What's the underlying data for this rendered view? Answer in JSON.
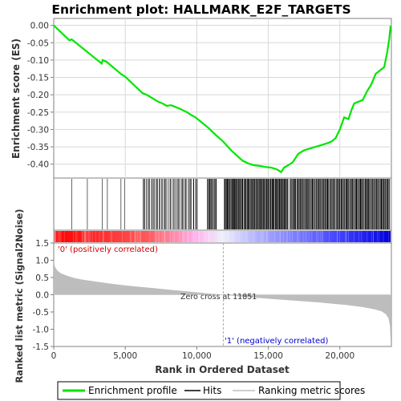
{
  "title": "Enrichment plot: HALLMARK_E2F_TARGETS",
  "colors": {
    "es_line": "#00e600",
    "hits": "#000000",
    "metric_fill": "#bdbdbd",
    "positive_label": "#cc0000",
    "negative_label": "#0000cc",
    "zero_line": "#d0d0d0",
    "grid": "#d8d8d8"
  },
  "chart_data": [
    {
      "type": "line",
      "panel": "enrichment-score",
      "ylabel": "Enrichment score (ES)",
      "ylim": [
        -0.44,
        0.02
      ],
      "xlim": [
        0,
        23600
      ],
      "yticks": [
        "0.00",
        "-0.05",
        "-0.10",
        "-0.15",
        "-0.20",
        "-0.25",
        "-0.30",
        "-0.35",
        "-0.40"
      ],
      "ytick_values": [
        0,
        -0.05,
        -0.1,
        -0.15,
        -0.2,
        -0.25,
        -0.3,
        -0.35,
        -0.4
      ],
      "grid": true,
      "series": [
        {
          "name": "Enrichment profile",
          "x": [
            0,
            1100,
            1250,
            2300,
            2450,
            3350,
            3420,
            3700,
            4700,
            5000,
            6200,
            6500,
            6900,
            7300,
            7600,
            7900,
            8200,
            8500,
            8800,
            9300,
            9600,
            9900,
            10200,
            10800,
            11300,
            11850,
            12400,
            12800,
            13200,
            13600,
            14000,
            14400,
            14800,
            15200,
            15600,
            15900,
            16100,
            16300,
            16700,
            17100,
            17500,
            17900,
            18300,
            18700,
            19100,
            19400,
            19700,
            20000,
            20300,
            20600,
            20800,
            21000,
            21300,
            21600,
            21900,
            22200,
            22500,
            22800,
            23100,
            23300,
            23450,
            23550
          ],
          "y": [
            0.0,
            -0.043,
            -0.04,
            -0.075,
            -0.08,
            -0.11,
            -0.1,
            -0.105,
            -0.14,
            -0.148,
            -0.195,
            -0.2,
            -0.21,
            -0.22,
            -0.225,
            -0.232,
            -0.23,
            -0.235,
            -0.24,
            -0.25,
            -0.258,
            -0.265,
            -0.275,
            -0.295,
            -0.315,
            -0.335,
            -0.36,
            -0.375,
            -0.39,
            -0.398,
            -0.403,
            -0.405,
            -0.408,
            -0.41,
            -0.415,
            -0.423,
            -0.41,
            -0.405,
            -0.395,
            -0.37,
            -0.36,
            -0.355,
            -0.35,
            -0.345,
            -0.34,
            -0.335,
            -0.325,
            -0.3,
            -0.265,
            -0.27,
            -0.245,
            -0.225,
            -0.22,
            -0.215,
            -0.19,
            -0.17,
            -0.14,
            -0.13,
            -0.12,
            -0.08,
            -0.04,
            0.0
          ]
        }
      ]
    },
    {
      "type": "scatter",
      "panel": "hits",
      "label": "Hits",
      "hit_groups": [
        {
          "positions": [
            1250,
            2350,
            3400,
            3750,
            4700,
            4950
          ]
        },
        {
          "start": 6200,
          "end": 10100,
          "count": 48
        },
        {
          "start": 10700,
          "end": 11400,
          "count": 14
        },
        {
          "start": 11900,
          "end": 16400,
          "count": 110
        },
        {
          "start": 16500,
          "end": 23500,
          "count": 150
        }
      ]
    },
    {
      "type": "heatmap",
      "panel": "rank-colorbar",
      "stops": [
        {
          "offset": 0.0,
          "color": "#ff0000"
        },
        {
          "offset": 0.28,
          "color": "#ff5a5a"
        },
        {
          "offset": 0.42,
          "color": "#ffb0ee"
        },
        {
          "offset": 0.5,
          "color": "#eeeefa"
        },
        {
          "offset": 0.62,
          "color": "#a8a8ff"
        },
        {
          "offset": 0.85,
          "color": "#4040ff"
        },
        {
          "offset": 1.0,
          "color": "#0000dd"
        }
      ]
    },
    {
      "type": "area",
      "panel": "ranked-metric",
      "xlabel": "Rank in Ordered Dataset",
      "ylabel": "Ranked list metric (Signal2Noise)",
      "ylim": [
        -1.5,
        1.5
      ],
      "xlim": [
        0,
        23600
      ],
      "yticks": [
        "1.5",
        "1.0",
        "0.5",
        "0.0",
        "-0.5",
        "-1.0",
        "-1.5"
      ],
      "ytick_values": [
        1.5,
        1.0,
        0.5,
        0.0,
        -0.5,
        -1.0,
        -1.5
      ],
      "xticks": [
        "0",
        "5,000",
        "10,000",
        "15,000",
        "20,000"
      ],
      "xtick_values": [
        0,
        5000,
        10000,
        15000,
        20000
      ],
      "x": [
        0,
        80,
        250,
        500,
        1000,
        1500,
        2000,
        3000,
        4000,
        5000,
        6000,
        7000,
        8000,
        9000,
        10000,
        11000,
        11851,
        12500,
        13500,
        14500,
        15500,
        16500,
        17500,
        18500,
        19500,
        20500,
        21500,
        22000,
        22500,
        22900,
        23200,
        23400,
        23500,
        23550
      ],
      "values": [
        1.0,
        0.82,
        0.7,
        0.62,
        0.54,
        0.48,
        0.44,
        0.38,
        0.32,
        0.27,
        0.23,
        0.19,
        0.15,
        0.11,
        0.07,
        0.03,
        0.0,
        -0.03,
        -0.07,
        -0.1,
        -0.13,
        -0.16,
        -0.19,
        -0.22,
        -0.26,
        -0.3,
        -0.35,
        -0.39,
        -0.43,
        -0.48,
        -0.56,
        -0.68,
        -0.9,
        -1.38
      ],
      "annotations": {
        "positive": "'0' (positively correlated)",
        "negative": "'1' (negatively correlated)",
        "zero_cross": "Zero cross at 11851",
        "zero_cross_x": 11851
      }
    }
  ],
  "legend": {
    "items": [
      {
        "label": "Enrichment profile",
        "color": "#00e600"
      },
      {
        "label": "Hits",
        "color": "#000000"
      },
      {
        "label": "Ranking metric scores",
        "color": "#bdbdbd"
      }
    ]
  }
}
